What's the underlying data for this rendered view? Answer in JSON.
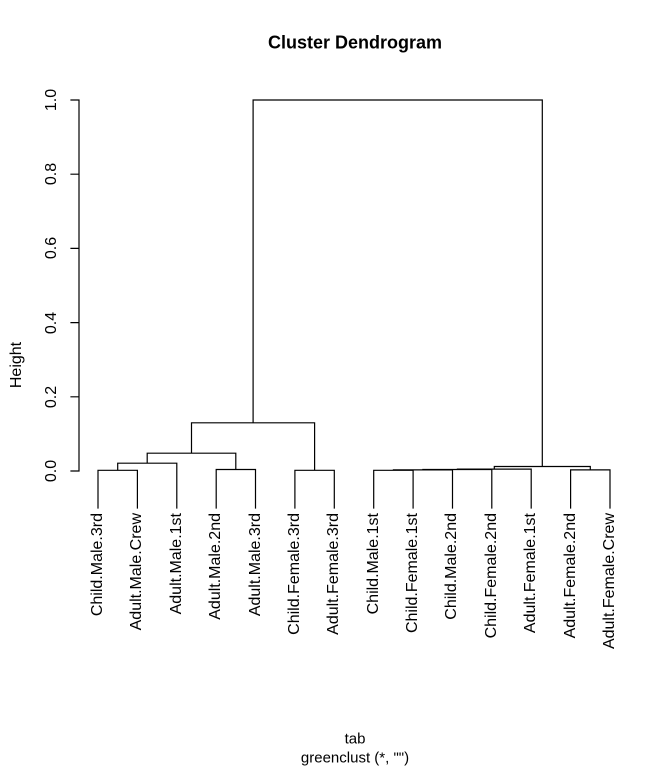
{
  "chart": {
    "title": "Cluster Dendrogram",
    "ylabel": "Height",
    "caption_line1": "tab",
    "caption_line2": "greenclust (*, \"\")"
  },
  "chart_data": {
    "type": "dendrogram",
    "title": "Cluster Dendrogram",
    "ylabel": "Height",
    "xlabel": "tab",
    "sub_caption": "greenclust (*, \"\")",
    "ylim": [
      0.0,
      1.0
    ],
    "yticks": [
      "0.0",
      "0.2",
      "0.4",
      "0.6",
      "0.8",
      "1.0"
    ],
    "grid": false,
    "line_color": "#000000",
    "background_color": "#ffffff",
    "leaf_order": [
      "Child.Male.3rd",
      "Adult.Male.Crew",
      "Adult.Male.1st",
      "Adult.Male.2nd",
      "Adult.Male.3rd",
      "Child.Female.3rd",
      "Adult.Female.3rd",
      "Child.Male.1st",
      "Child.Female.1st",
      "Child.Male.2nd",
      "Child.Female.2nd",
      "Adult.Female.1st",
      "Adult.Female.2nd",
      "Adult.Female.Crew"
    ],
    "tree": {
      "h": 1.0,
      "c": [
        {
          "h": 0.13,
          "c": [
            {
              "h": 0.048,
              "c": [
                {
                  "h": 0.021,
                  "c": [
                    {
                      "h": 0.002,
                      "c": [
                        {
                          "leaf": "Child.Male.3rd"
                        },
                        {
                          "leaf": "Adult.Male.Crew"
                        }
                      ]
                    },
                    {
                      "leaf": "Adult.Male.1st"
                    }
                  ]
                },
                {
                  "h": 0.004,
                  "c": [
                    {
                      "leaf": "Adult.Male.2nd"
                    },
                    {
                      "leaf": "Adult.Male.3rd"
                    }
                  ]
                }
              ]
            },
            {
              "h": 0.002,
              "c": [
                {
                  "leaf": "Child.Female.3rd"
                },
                {
                  "leaf": "Adult.Female.3rd"
                }
              ]
            }
          ]
        },
        {
          "h": 0.012,
          "c": [
            {
              "h": 0.005,
              "c": [
                {
                  "h": 0.004,
                  "c": [
                    {
                      "h": 0.003,
                      "c": [
                        {
                          "h": 0.002,
                          "c": [
                            {
                              "leaf": "Child.Male.1st"
                            },
                            {
                              "leaf": "Child.Female.1st"
                            }
                          ]
                        },
                        {
                          "leaf": "Child.Male.2nd"
                        }
                      ]
                    },
                    {
                      "leaf": "Child.Female.2nd"
                    }
                  ]
                },
                {
                  "leaf": "Adult.Female.1st"
                }
              ]
            },
            {
              "h": 0.003,
              "c": [
                {
                  "leaf": "Adult.Female.2nd"
                },
                {
                  "leaf": "Adult.Female.Crew"
                }
              ]
            }
          ]
        }
      ]
    }
  }
}
